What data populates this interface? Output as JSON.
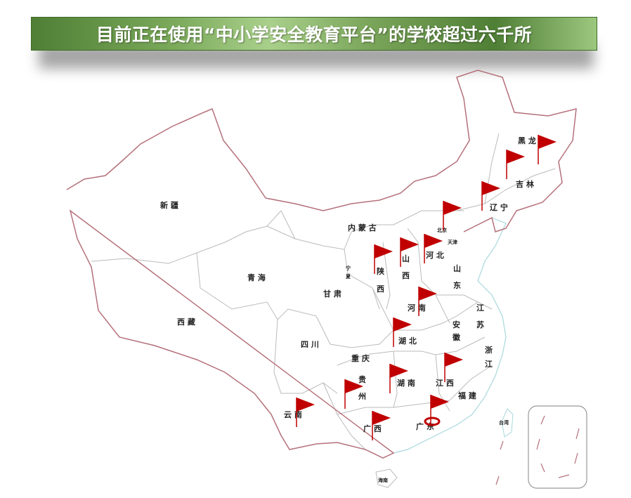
{
  "title": "目前正在使用“中小学安全教育平台”的学校超过六千所",
  "colors": {
    "banner": "#6e9e4e",
    "border": "#b5707a",
    "province_line": "#bbbbbb",
    "coast": "#a8d8dc",
    "flag": "#c00000"
  },
  "provinces": [
    {
      "name": "新疆",
      "t": "新 疆"
    },
    {
      "name": "西藏",
      "t": "西 藏"
    },
    {
      "name": "青海",
      "t": "青 海"
    },
    {
      "name": "甘肃",
      "t": "甘 肃"
    },
    {
      "name": "内蒙古",
      "t": "内 蒙 古"
    },
    {
      "name": "宁",
      "t": "宁"
    },
    {
      "name": "夏",
      "t": "夏"
    },
    {
      "name": "陕",
      "t": "陕"
    },
    {
      "name": "陕西2",
      "t": "西"
    },
    {
      "name": "山",
      "t": "山"
    },
    {
      "name": "山西2",
      "t": "西"
    },
    {
      "name": "河北",
      "t": "河 北"
    },
    {
      "name": "北京",
      "t": "北京"
    },
    {
      "name": "天津",
      "t": "天津"
    },
    {
      "name": "山东1",
      "t": "山"
    },
    {
      "name": "山东2",
      "t": "东"
    },
    {
      "name": "河南",
      "t": "河   南"
    },
    {
      "name": "江苏1",
      "t": "江"
    },
    {
      "name": "江苏2",
      "t": "苏"
    },
    {
      "name": "安徽1",
      "t": "安"
    },
    {
      "name": "安徽2",
      "t": "徽"
    },
    {
      "name": "湖北",
      "t": "湖 北"
    },
    {
      "name": "四川",
      "t": "四   川"
    },
    {
      "name": "重庆",
      "t": "重 庆"
    },
    {
      "name": "贵州1",
      "t": "贵"
    },
    {
      "name": "贵州2",
      "t": "州"
    },
    {
      "name": "湖南",
      "t": "湖  南"
    },
    {
      "name": "江西",
      "t": "江 西"
    },
    {
      "name": "浙江1",
      "t": "浙"
    },
    {
      "name": "浙江2",
      "t": "江"
    },
    {
      "name": "福建",
      "t": "福  建"
    },
    {
      "name": "云南",
      "t": "云   南"
    },
    {
      "name": "广西",
      "t": "广  西"
    },
    {
      "name": "广东",
      "t": "广 东"
    },
    {
      "name": "海南",
      "t": "海南"
    },
    {
      "name": "台湾",
      "t": "台湾"
    },
    {
      "name": "黑龙",
      "t": "黑 龙"
    },
    {
      "name": "吉林",
      "t": "吉 林"
    },
    {
      "name": "辽宁",
      "t": "辽 宁"
    }
  ],
  "flags": [
    "黑龙江",
    "吉林",
    "辽宁",
    "北京",
    "陕西",
    "山西",
    "河北",
    "河南",
    "湖北",
    "湖南",
    "江西",
    "贵州",
    "云南",
    "广西",
    "广东"
  ],
  "highlight_flag": "广东"
}
